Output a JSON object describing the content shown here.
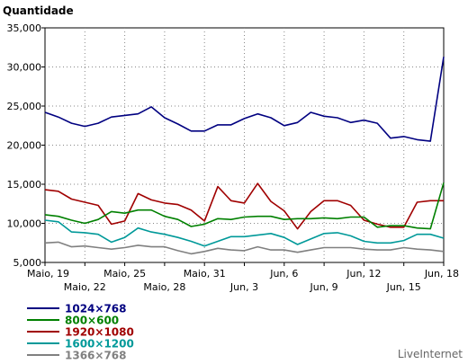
{
  "chart_data": {
    "type": "line",
    "title": "",
    "ylabel": "Quantidade",
    "xlabel": "",
    "ylim": [
      5000,
      35000
    ],
    "yticks": [
      "5,000",
      "10,000",
      "15,000",
      "20,000",
      "25,000",
      "30,000",
      "35,000"
    ],
    "ytick_values": [
      5000,
      10000,
      15000,
      20000,
      25000,
      30000,
      35000
    ],
    "xtick_labels": [
      "Maio, 19",
      "Maio, 22",
      "Maio, 25",
      "Maio, 28",
      "Maio, 31",
      "Jun, 3",
      "Jun, 6",
      "Jun, 9",
      "Jun, 12",
      "Jun, 15",
      "Jun, 18"
    ],
    "xtick_days": [
      0,
      3,
      6,
      9,
      12,
      15,
      18,
      21,
      24,
      27,
      30
    ],
    "x_days": [
      0,
      1,
      2,
      3,
      4,
      5,
      6,
      7,
      8,
      9,
      10,
      11,
      12,
      13,
      14,
      15,
      16,
      17,
      18,
      19,
      20,
      21,
      22,
      23,
      24,
      25,
      26,
      27,
      28,
      29,
      30
    ],
    "grid": true,
    "legend_position": "bottom-left",
    "series": [
      {
        "name": "1024×768",
        "color": "#000080",
        "values": [
          24200,
          23600,
          22800,
          22400,
          22800,
          23600,
          23800,
          24000,
          24900,
          23500,
          22700,
          21800,
          21800,
          22600,
          22600,
          23400,
          24000,
          23500,
          22500,
          22900,
          24200,
          23700,
          23500,
          22900,
          23200,
          22800,
          20900,
          21100,
          20700,
          20500,
          31300
        ]
      },
      {
        "name": "800×600",
        "color": "#008000",
        "values": [
          11100,
          10900,
          10400,
          10000,
          10500,
          11500,
          11300,
          11700,
          11700,
          10900,
          10500,
          9600,
          9900,
          10600,
          10500,
          10800,
          10900,
          10900,
          10500,
          10600,
          10600,
          10700,
          10600,
          10800,
          10800,
          9500,
          9700,
          9700,
          9400,
          9300,
          15200
        ]
      },
      {
        "name": "1920×1080",
        "color": "#a00000",
        "values": [
          14300,
          14100,
          13100,
          12700,
          12300,
          9900,
          10300,
          13800,
          13000,
          12600,
          12400,
          11700,
          10300,
          14700,
          12900,
          12600,
          15100,
          12800,
          11600,
          9300,
          11500,
          12900,
          12900,
          12300,
          10400,
          9900,
          9500,
          9500,
          12700,
          12900,
          12900
        ]
      },
      {
        "name": "1600×1200",
        "color": "#009999",
        "values": [
          10400,
          10200,
          8900,
          8800,
          8600,
          7600,
          8200,
          9400,
          8900,
          8600,
          8200,
          7700,
          7100,
          7700,
          8300,
          8300,
          8500,
          8700,
          8200,
          7300,
          8000,
          8700,
          8800,
          8400,
          7700,
          7500,
          7500,
          7800,
          8600,
          8600,
          8100
        ]
      },
      {
        "name": "1366×768",
        "color": "#808080",
        "values": [
          7500,
          7600,
          7000,
          7100,
          6900,
          6700,
          6900,
          7200,
          7000,
          7000,
          6500,
          6100,
          6400,
          6800,
          6600,
          6500,
          7000,
          6600,
          6600,
          6300,
          6600,
          6900,
          6900,
          6900,
          6700,
          6600,
          6600,
          6900,
          6700,
          6600,
          6400
        ]
      }
    ],
    "credit": "LiveInternet"
  }
}
